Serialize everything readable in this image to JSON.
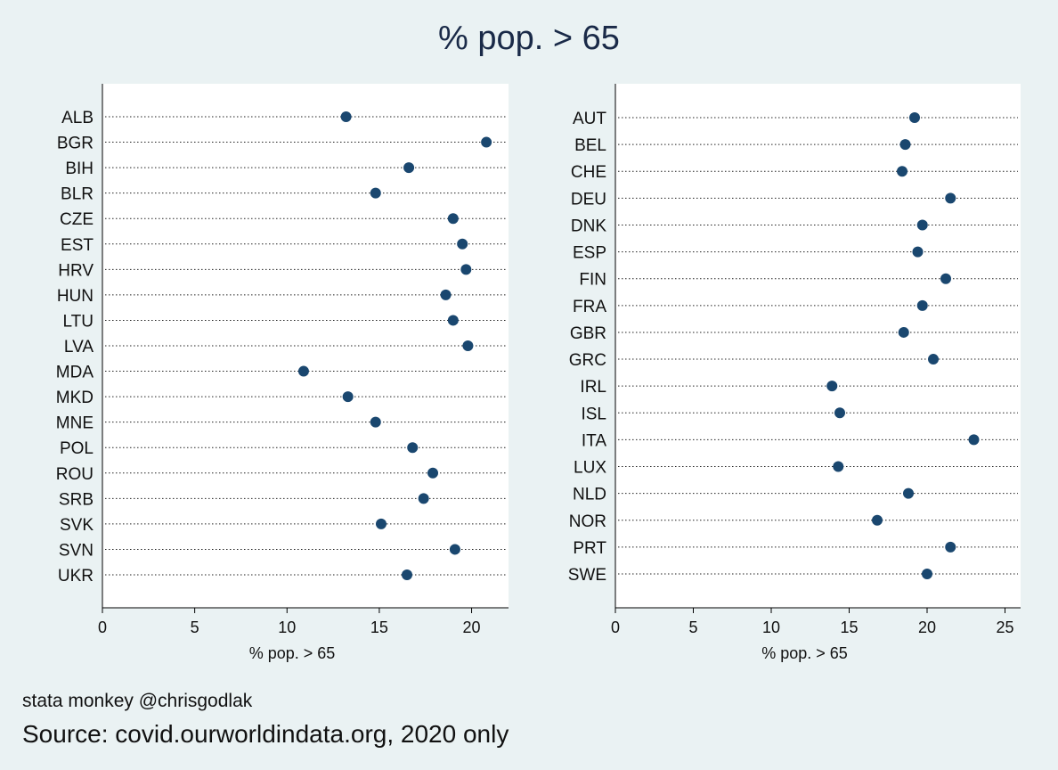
{
  "title": "% pop. > 65",
  "note": "stata monkey @chrisgodlak",
  "caption": "Source: covid.ourworldindata.org, 2020 only",
  "colors": {
    "marker": "#1a476f",
    "plot_bg": "#ffffff",
    "page_bg": "#eaf2f3"
  },
  "chart_data": [
    {
      "type": "scatter",
      "orientation": "dot-plot",
      "xlabel": "% pop. > 65",
      "xlim": [
        0,
        22
      ],
      "xticks": [
        0,
        5,
        10,
        15,
        20
      ],
      "categories": [
        "ALB",
        "BGR",
        "BIH",
        "BLR",
        "CZE",
        "EST",
        "HRV",
        "HUN",
        "LTU",
        "LVA",
        "MDA",
        "MKD",
        "MNE",
        "POL",
        "ROU",
        "SRB",
        "SVK",
        "SVN",
        "UKR"
      ],
      "values": [
        13.2,
        20.8,
        16.6,
        14.8,
        19.0,
        19.5,
        19.7,
        18.6,
        19.0,
        19.8,
        10.9,
        13.3,
        14.8,
        16.8,
        17.9,
        17.4,
        15.1,
        19.1,
        16.5
      ]
    },
    {
      "type": "scatter",
      "orientation": "dot-plot",
      "xlabel": "% pop. > 65",
      "xlim": [
        0,
        26
      ],
      "xticks": [
        0,
        5,
        10,
        15,
        20,
        25
      ],
      "categories": [
        "AUT",
        "BEL",
        "CHE",
        "DEU",
        "DNK",
        "ESP",
        "FIN",
        "FRA",
        "GBR",
        "GRC",
        "IRL",
        "ISL",
        "ITA",
        "LUX",
        "NLD",
        "NOR",
        "PRT",
        "SWE"
      ],
      "values": [
        19.2,
        18.6,
        18.4,
        21.5,
        19.7,
        19.4,
        21.2,
        19.7,
        18.5,
        20.4,
        13.9,
        14.4,
        23.0,
        14.3,
        18.8,
        16.8,
        21.5,
        20.0
      ]
    }
  ]
}
